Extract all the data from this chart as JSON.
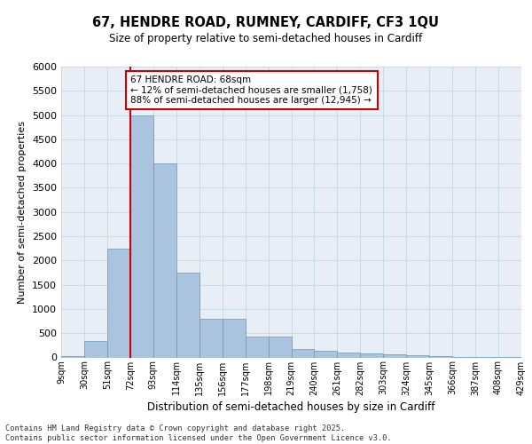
{
  "title1": "67, HENDRE ROAD, RUMNEY, CARDIFF, CF3 1QU",
  "title2": "Size of property relative to semi-detached houses in Cardiff",
  "xlabel": "Distribution of semi-detached houses by size in Cardiff",
  "ylabel": "Number of semi-detached properties",
  "footer1": "Contains HM Land Registry data © Crown copyright and database right 2025.",
  "footer2": "Contains public sector information licensed under the Open Government Licence v3.0.",
  "annotation_title": "67 HENDRE ROAD: 68sqm",
  "annotation_line1": "← 12% of semi-detached houses are smaller (1,758)",
  "annotation_line2": "88% of semi-detached houses are larger (12,945) →",
  "property_size": 68,
  "bin_edges": [
    9,
    30,
    51,
    72,
    93,
    114,
    135,
    156,
    177,
    198,
    219,
    240,
    261,
    282,
    303,
    324,
    345,
    366,
    387,
    408,
    429
  ],
  "bin_labels": [
    "9sqm",
    "30sqm",
    "51sqm",
    "72sqm",
    "93sqm",
    "114sqm",
    "135sqm",
    "156sqm",
    "177sqm",
    "198sqm",
    "219sqm",
    "240sqm",
    "261sqm",
    "282sqm",
    "303sqm",
    "324sqm",
    "345sqm",
    "366sqm",
    "387sqm",
    "408sqm",
    "429sqm"
  ],
  "bar_values": [
    30,
    330,
    2250,
    5000,
    4000,
    1750,
    800,
    800,
    430,
    430,
    170,
    130,
    100,
    80,
    60,
    50,
    30,
    10,
    10,
    5
  ],
  "bar_color": "#aac4df",
  "bar_edgecolor": "#6699bb",
  "grid_color": "#c8d4e4",
  "bg_color": "#e8eef6",
  "red_line_color": "#cc0000",
  "annotation_box_color": "#cc0000",
  "ylim": [
    0,
    6000
  ],
  "yticks": [
    0,
    500,
    1000,
    1500,
    2000,
    2500,
    3000,
    3500,
    4000,
    4500,
    5000,
    5500,
    6000
  ]
}
